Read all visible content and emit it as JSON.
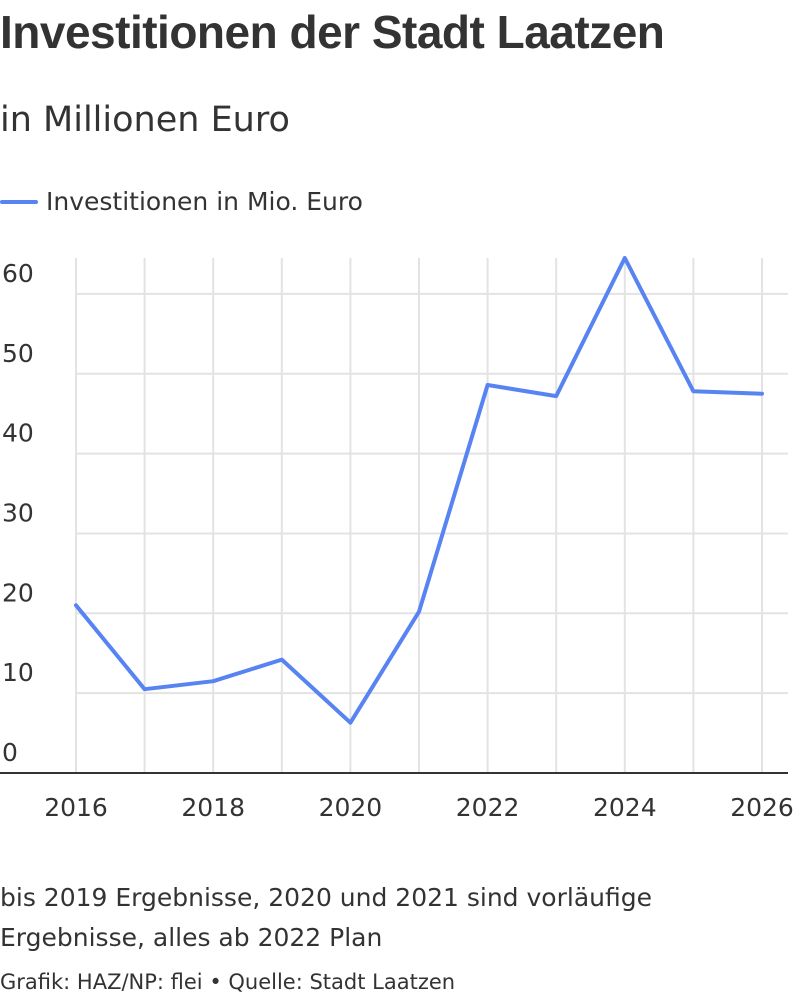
{
  "title": "Investitionen der Stadt Laatzen",
  "subtitle": "in Millionen Euro",
  "colors": {
    "series": "#5784f2",
    "grid": "#e3e3e3",
    "axis": "#333333",
    "text": "#333333"
  },
  "note": "bis 2019 Ergebnisse, 2020 und 2021 sind vorläufige Ergebnisse, alles ab 2022 Plan",
  "source": "Grafik: HAZ/NP: flei • Quelle: Stadt Laatzen",
  "chart_data": {
    "type": "line",
    "title": "Investitionen der Stadt Laatzen",
    "subtitle": "in Millionen Euro",
    "xlabel": "",
    "ylabel": "",
    "x": [
      2016,
      2017,
      2018,
      2019,
      2020,
      2021,
      2022,
      2023,
      2024,
      2025,
      2026
    ],
    "series": [
      {
        "name": "Investitionen in Mio. Euro",
        "values": [
          21.0,
          10.5,
          11.5,
          14.2,
          6.3,
          20.2,
          48.6,
          47.2,
          64.5,
          47.8,
          47.5
        ]
      }
    ],
    "xlim": [
      2016,
      2026
    ],
    "ylim": [
      0,
      64.5
    ],
    "xticks": [
      "2016",
      "2018",
      "2020",
      "2022",
      "2024",
      "2026"
    ],
    "yticks": [
      "0",
      "10",
      "20",
      "30",
      "40",
      "50",
      "60"
    ],
    "grid": "on",
    "legend": "top-left"
  }
}
